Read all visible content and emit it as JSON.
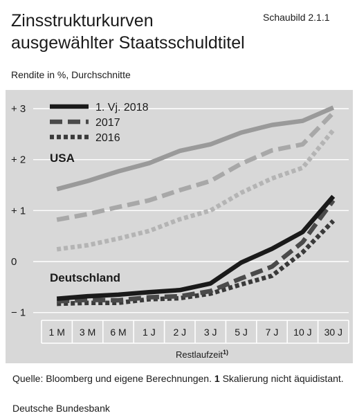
{
  "header": {
    "title_line1": "Zinsstrukturkurven",
    "title_line2": "ausgewählter Staatsschuldtitel",
    "figure_number": "Schaubild 2.1.1",
    "subtitle": "Rendite in %, Durchschnitte"
  },
  "footer": {
    "source_prefix": "Quelle: Bloomberg und eigene Berechnungen.",
    "footnote_marker": "1",
    "footnote_text": "Skalierung nicht äquidistant.",
    "publisher": "Deutsche Bundesbank"
  },
  "colors": {
    "background_panel": "#d8d8d8",
    "gridline": "#ffffff",
    "series_2018": "#1a1a1a",
    "series_2017": "#4a4a4a",
    "series_2016": "#3a3a3a",
    "usa_2018": "#9a9a9a",
    "usa_2017": "#a8a8a8",
    "usa_2016": "#b4b4b4"
  },
  "chart_data": {
    "type": "line",
    "title": "Zinsstrukturkurven ausgewählter Staatsschuldtitel",
    "xlabel": "Restlaufzeit",
    "xlabel_footnote": "1)",
    "ylabel": "Rendite in %, Durchschnitte",
    "categories": [
      "1 M",
      "3 M",
      "6 M",
      "1 J",
      "2 J",
      "3 J",
      "5 J",
      "7 J",
      "10 J",
      "30 J"
    ],
    "y_ticks": [
      "+ 3",
      "+ 2",
      "+ 1",
      "0",
      "− 1"
    ],
    "y_tick_values": [
      3,
      2,
      1,
      0,
      -1
    ],
    "ylim": [
      -1.15,
      3.3
    ],
    "grid": true,
    "legend": {
      "placement": "top-left",
      "entries": [
        {
          "label": "1. Vj. 2018",
          "style": "solid"
        },
        {
          "label": "2017",
          "style": "dashed"
        },
        {
          "label": "2016",
          "style": "dotted"
        }
      ]
    },
    "group_labels": {
      "usa": "USA",
      "deutschland": "Deutschland"
    },
    "series": [
      {
        "group": "USA",
        "style": "solid",
        "values": [
          1.42,
          1.58,
          1.77,
          1.93,
          2.17,
          2.3,
          2.53,
          2.68,
          2.76,
          3.02
        ]
      },
      {
        "group": "USA",
        "style": "dashed",
        "values": [
          0.82,
          0.93,
          1.07,
          1.2,
          1.4,
          1.58,
          1.92,
          2.18,
          2.3,
          2.92
        ]
      },
      {
        "group": "USA",
        "style": "dotted",
        "values": [
          0.24,
          0.32,
          0.45,
          0.6,
          0.83,
          1.0,
          1.35,
          1.63,
          1.84,
          2.58
        ]
      },
      {
        "group": "Deutschland",
        "style": "solid",
        "values": [
          -0.73,
          -0.68,
          -0.65,
          -0.6,
          -0.56,
          -0.43,
          -0.02,
          0.25,
          0.58,
          1.28
        ]
      },
      {
        "group": "Deutschland",
        "style": "dashed",
        "values": [
          -0.78,
          -0.75,
          -0.76,
          -0.7,
          -0.68,
          -0.58,
          -0.33,
          -0.1,
          0.38,
          1.2
        ]
      },
      {
        "group": "Deutschland",
        "style": "dotted",
        "values": [
          -0.83,
          -0.81,
          -0.81,
          -0.74,
          -0.72,
          -0.63,
          -0.45,
          -0.28,
          0.18,
          0.8
        ]
      }
    ]
  }
}
